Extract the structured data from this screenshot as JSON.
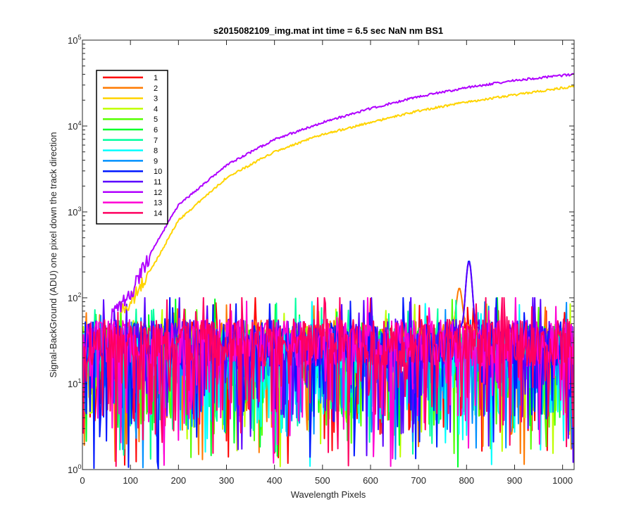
{
  "chart_data": {
    "type": "line",
    "title": "s2015082109_img.mat int time = 6.5 sec  NaN nm BS1",
    "xlabel": "Wavelength Pixels",
    "ylabel": "Signal-BackGround (ADU) one pixel down the track direction",
    "xlim": [
      0,
      1024
    ],
    "ylim": [
      1,
      100000
    ],
    "yscale": "log",
    "grid": false,
    "legend_position": "top-left",
    "x_ticks": [
      0,
      100,
      200,
      300,
      400,
      500,
      600,
      700,
      800,
      900,
      1000
    ],
    "y_ticks": [
      {
        "base": "10",
        "exp": "0",
        "value": 1
      },
      {
        "base": "10",
        "exp": "1",
        "value": 10
      },
      {
        "base": "10",
        "exp": "2",
        "value": 100
      },
      {
        "base": "10",
        "exp": "3",
        "value": 1000
      },
      {
        "base": "10",
        "exp": "4",
        "value": 10000
      },
      {
        "base": "10",
        "exp": "5",
        "value": 100000
      }
    ],
    "series": [
      {
        "name": "1",
        "color": "#ff0000",
        "kind": "noise",
        "level": 28,
        "peak_x": null,
        "peak_y": null
      },
      {
        "name": "2",
        "color": "#ff7a00",
        "kind": "noise",
        "level": 30,
        "peak_x": 785,
        "peak_y": 130
      },
      {
        "name": "3",
        "color": "#ffd400",
        "kind": "rising",
        "points": [
          [
            80,
            70
          ],
          [
            100,
            85
          ],
          [
            150,
            250
          ],
          [
            200,
            800
          ],
          [
            300,
            2500
          ],
          [
            400,
            5000
          ],
          [
            500,
            8000
          ],
          [
            600,
            11000
          ],
          [
            700,
            15000
          ],
          [
            800,
            19000
          ],
          [
            900,
            23000
          ],
          [
            1024,
            29000
          ]
        ]
      },
      {
        "name": "4",
        "color": "#bfff00",
        "kind": "noise",
        "level": 26,
        "peak_x": null,
        "peak_y": null
      },
      {
        "name": "5",
        "color": "#55ff00",
        "kind": "noise",
        "level": 24,
        "peak_x": null,
        "peak_y": null
      },
      {
        "name": "6",
        "color": "#00ff2a",
        "kind": "noise",
        "level": 25,
        "peak_x": null,
        "peak_y": null
      },
      {
        "name": "7",
        "color": "#00ff9f",
        "kind": "noise",
        "level": 24,
        "peak_x": null,
        "peak_y": null
      },
      {
        "name": "8",
        "color": "#00ffff",
        "kind": "noise",
        "level": 22,
        "peak_x": null,
        "peak_y": null
      },
      {
        "name": "9",
        "color": "#0090ff",
        "kind": "noise",
        "level": 22,
        "peak_x": null,
        "peak_y": null
      },
      {
        "name": "10",
        "color": "#0018ff",
        "kind": "noise",
        "level": 28,
        "peak_x": 805,
        "peak_y": 270
      },
      {
        "name": "11",
        "color": "#5a00ff",
        "kind": "noise",
        "level": 30,
        "peak_x": 805,
        "peak_y": 260
      },
      {
        "name": "12",
        "color": "#b000ff",
        "kind": "rising",
        "points": [
          [
            60,
            60
          ],
          [
            100,
            110
          ],
          [
            150,
            400
          ],
          [
            200,
            1200
          ],
          [
            300,
            3500
          ],
          [
            400,
            7000
          ],
          [
            500,
            11000
          ],
          [
            600,
            16000
          ],
          [
            700,
            22000
          ],
          [
            800,
            28000
          ],
          [
            900,
            34000
          ],
          [
            1024,
            40000
          ]
        ]
      },
      {
        "name": "13",
        "color": "#ff00d4",
        "kind": "noise",
        "level": 30,
        "peak_x": null,
        "peak_y": null
      },
      {
        "name": "14",
        "color": "#ff0060",
        "kind": "noise",
        "level": 30,
        "peak_x": null,
        "peak_y": null
      }
    ]
  }
}
